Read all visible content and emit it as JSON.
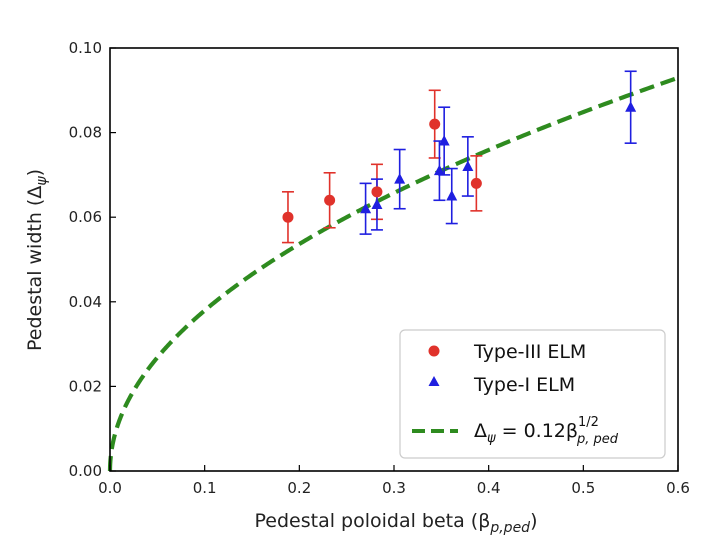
{
  "chart_data": {
    "type": "scatter",
    "xlabel": "Pedestal poloidal beta (β",
    "xlabel_sub": "p,ped",
    "xlabel_end": ")",
    "ylabel": "Pedestal width (Δ",
    "ylabel_sub": "ψ",
    "ylabel_end": ")",
    "xlim": [
      0.0,
      0.6
    ],
    "ylim": [
      0.0,
      0.1
    ],
    "xticks": [
      0.0,
      0.1,
      0.2,
      0.3,
      0.4,
      0.5,
      0.6
    ],
    "xtick_labels": [
      "0.0",
      "0.1",
      "0.2",
      "0.3",
      "0.4",
      "0.5",
      "0.6"
    ],
    "yticks": [
      0.0,
      0.02,
      0.04,
      0.06,
      0.08,
      0.1
    ],
    "ytick_labels": [
      "0.00",
      "0.02",
      "0.04",
      "0.06",
      "0.08",
      "0.10"
    ],
    "grid": false,
    "legend_position": "lower-right",
    "series": [
      {
        "name": "Type-III ELM",
        "marker": "circle",
        "color": "#e0322b",
        "points": [
          {
            "x": 0.188,
            "y": 0.06,
            "yerr": 0.006
          },
          {
            "x": 0.232,
            "y": 0.064,
            "yerr": 0.0065
          },
          {
            "x": 0.282,
            "y": 0.066,
            "yerr": 0.0065
          },
          {
            "x": 0.343,
            "y": 0.082,
            "yerr": 0.008
          },
          {
            "x": 0.387,
            "y": 0.068,
            "yerr": 0.0065
          }
        ]
      },
      {
        "name": "Type-I ELM",
        "marker": "triangle",
        "color": "#1f1fe0",
        "points": [
          {
            "x": 0.27,
            "y": 0.062,
            "yerr": 0.006
          },
          {
            "x": 0.282,
            "y": 0.063,
            "yerr": 0.006
          },
          {
            "x": 0.306,
            "y": 0.069,
            "yerr": 0.007
          },
          {
            "x": 0.348,
            "y": 0.071,
            "yerr": 0.007
          },
          {
            "x": 0.353,
            "y": 0.078,
            "yerr": 0.008
          },
          {
            "x": 0.361,
            "y": 0.065,
            "yerr": 0.0065
          },
          {
            "x": 0.378,
            "y": 0.072,
            "yerr": 0.007
          },
          {
            "x": 0.55,
            "y": 0.086,
            "yerr": 0.0085
          }
        ]
      },
      {
        "name": "Δψ = 0.12β_p,ped^(1/2)",
        "legend_main": "Δ",
        "legend_sub1": "ψ",
        "legend_mid": " = 0.12β",
        "legend_sup": "1/2",
        "legend_sub2": "p, ped",
        "type": "line",
        "style": "dashed",
        "color": "#2e8b1f",
        "coefficient": 0.12,
        "exponent": 0.5
      }
    ]
  }
}
